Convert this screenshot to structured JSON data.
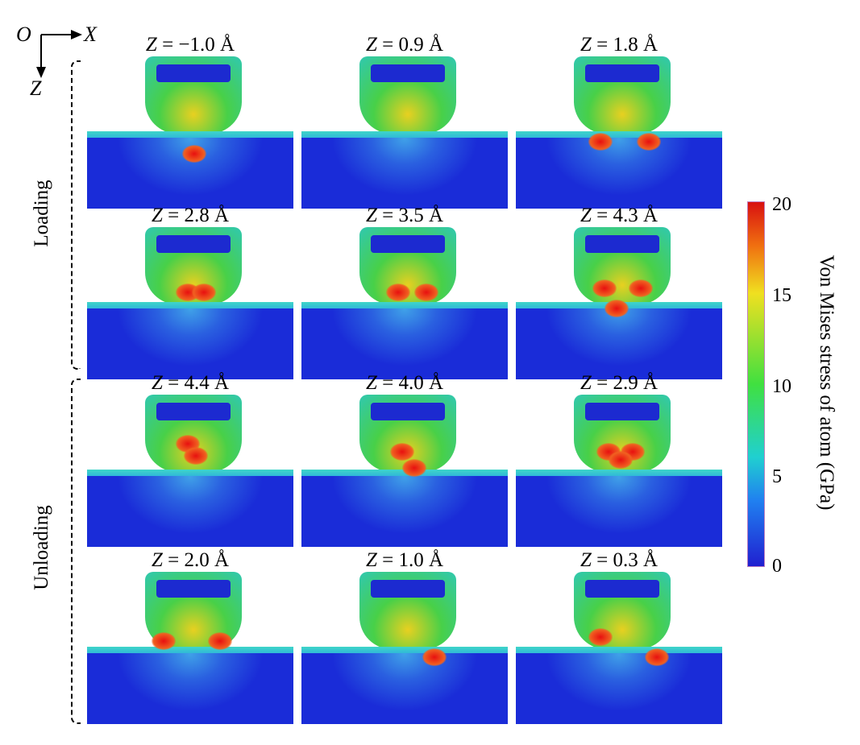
{
  "axes": {
    "origin": "O",
    "x": "X",
    "z": "Z"
  },
  "groups": [
    {
      "label": "Loading"
    },
    {
      "label": "Unloading"
    }
  ],
  "panels": [
    {
      "var": "Z",
      "value": "= −1.0 Å"
    },
    {
      "var": "Z",
      "value": "= 0.9 Å"
    },
    {
      "var": "Z",
      "value": "= 1.8 Å"
    },
    {
      "var": "Z",
      "value": "= 2.8 Å"
    },
    {
      "var": "Z",
      "value": "= 3.5 Å"
    },
    {
      "var": "Z",
      "value": "= 4.3 Å"
    },
    {
      "var": "Z",
      "value": "= 4.4 Å"
    },
    {
      "var": "Z",
      "value": "= 4.0 Å"
    },
    {
      "var": "Z",
      "value": "= 2.9 Å"
    },
    {
      "var": "Z",
      "value": "= 2.0 Å"
    },
    {
      "var": "Z",
      "value": "= 1.0 Å"
    },
    {
      "var": "Z",
      "value": "= 0.3 Å"
    }
  ],
  "colorbar": {
    "label": "Von Mises stress of atom (GPa)",
    "ticks": [
      "20",
      "15",
      "10",
      "5",
      "0"
    ],
    "min": 0,
    "max": 20,
    "colors": [
      "#d81010",
      "#f07010",
      "#f0e020",
      "#40e040",
      "#20d0d0",
      "#2080f0",
      "#2020d0"
    ]
  }
}
